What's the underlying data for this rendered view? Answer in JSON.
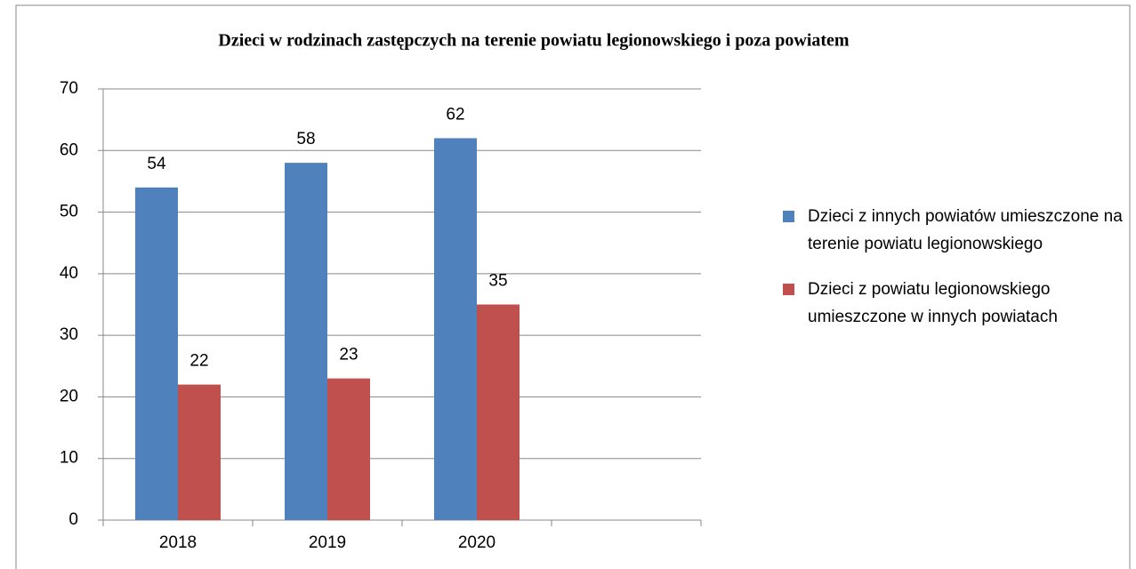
{
  "chart_data": {
    "type": "bar",
    "title": "Dzieci w rodzinach zastępczych na terenie powiatu legionowskiego i poza powiatem",
    "categories": [
      "2018",
      "2019",
      "2020",
      null
    ],
    "series": [
      {
        "name": "Dzieci z innych powiatów umieszczone na terenie powiatu legionowskiego",
        "color": "#4f81bd",
        "values": [
          54,
          58,
          62,
          null
        ]
      },
      {
        "name": "Dzieci z powiatu legionowskiego umieszczone w innych powiatach",
        "color": "#c0504d",
        "values": [
          22,
          23,
          35,
          null
        ]
      }
    ],
    "ylim": [
      0,
      70
    ],
    "yticks": [
      0,
      10,
      20,
      30,
      40,
      50,
      60,
      70
    ],
    "grid": true,
    "legend": "right"
  }
}
